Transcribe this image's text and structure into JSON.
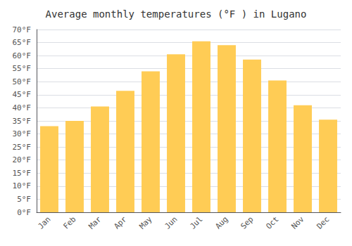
{
  "chart_data": {
    "type": "bar",
    "title": "Average monthly temperatures (°F ) in Lugano",
    "categories": [
      "Jan",
      "Feb",
      "Mar",
      "Apr",
      "May",
      "Jun",
      "Jul",
      "Aug",
      "Sep",
      "Oct",
      "Nov",
      "Dec"
    ],
    "values": [
      33,
      35,
      40.5,
      46.5,
      54,
      60.5,
      65.5,
      64,
      58.5,
      50.5,
      41,
      35.5
    ],
    "color": "#FFCC55",
    "ylim": [
      0,
      70
    ],
    "yticks": [
      {
        "value": 0,
        "label": "0°F"
      },
      {
        "value": 5,
        "label": "5°F"
      },
      {
        "value": 10,
        "label": "10°F"
      },
      {
        "value": 15,
        "label": "15°F"
      },
      {
        "value": 20,
        "label": "20°F"
      },
      {
        "value": 25,
        "label": "25°F"
      },
      {
        "value": 30,
        "label": "30°F"
      },
      {
        "value": 35,
        "label": "35°F"
      },
      {
        "value": 40,
        "label": "40°F"
      },
      {
        "value": 45,
        "label": "45°F"
      },
      {
        "value": 50,
        "label": "50°F"
      },
      {
        "value": 55,
        "label": "55°F"
      },
      {
        "value": 60,
        "label": "60°F"
      },
      {
        "value": 65,
        "label": "65°F"
      },
      {
        "value": 70,
        "label": "70°F"
      }
    ],
    "grid": true
  }
}
